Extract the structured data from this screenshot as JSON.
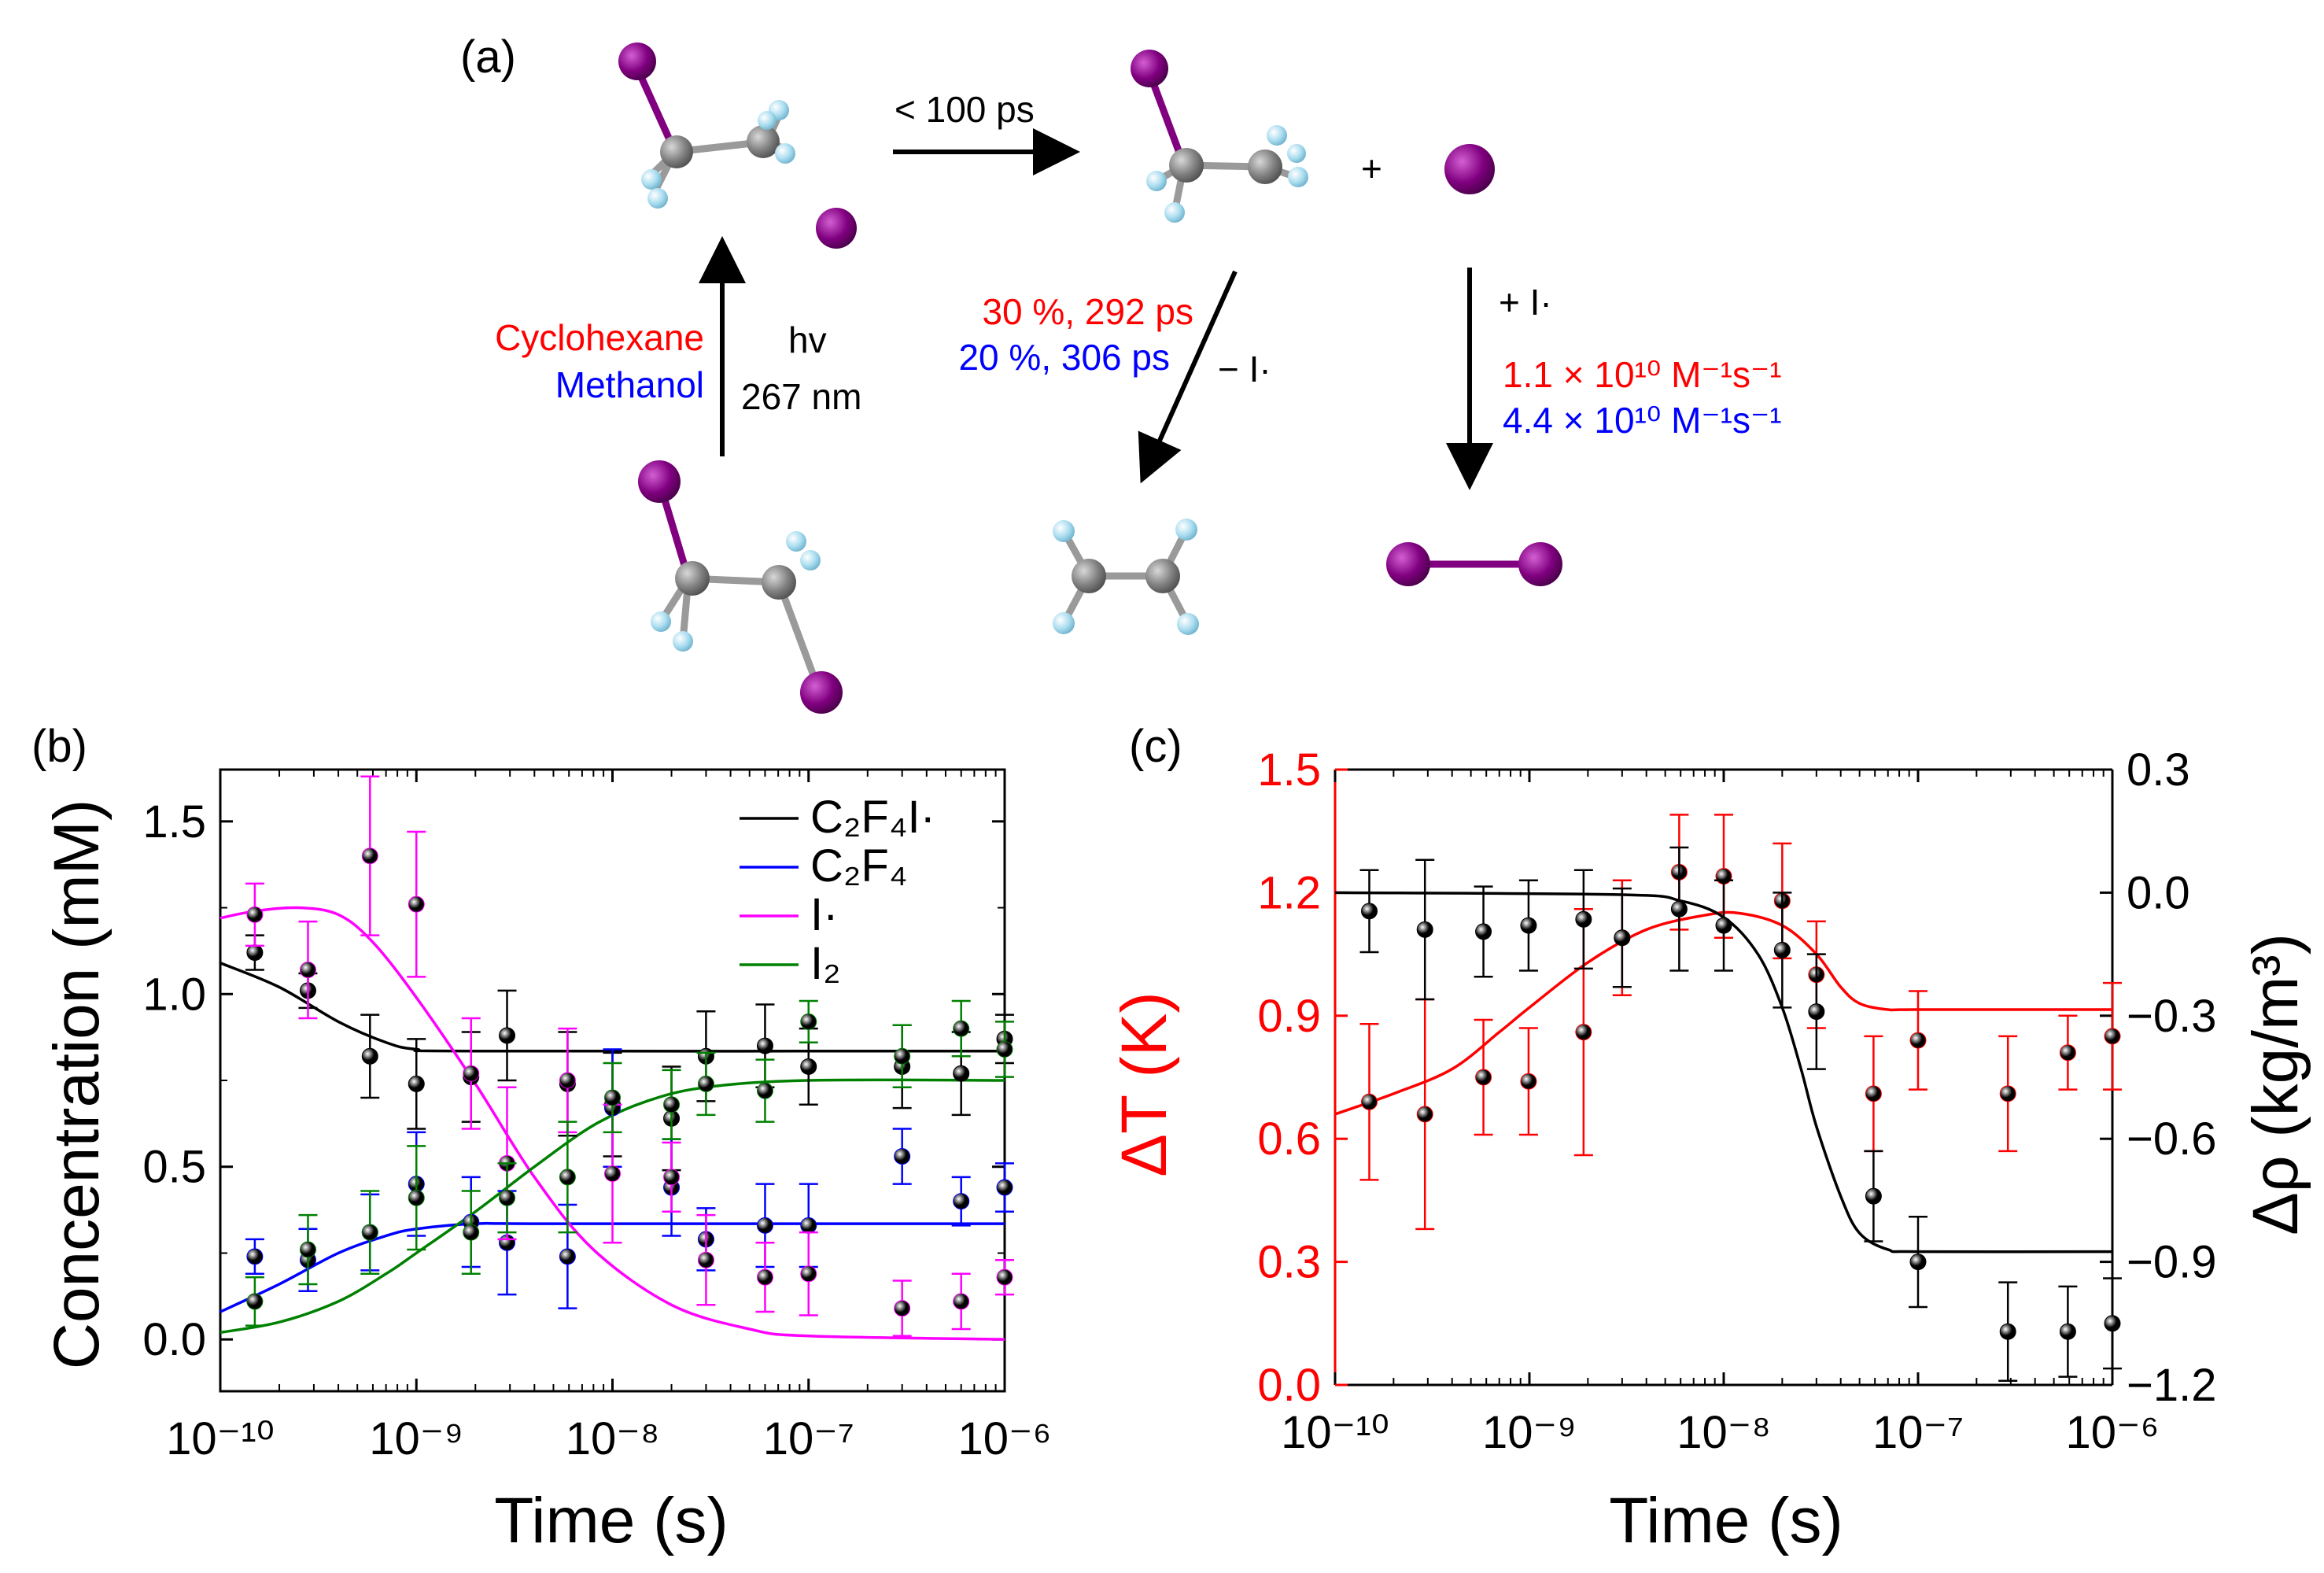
{
  "panel_a": {
    "label": "(a)",
    "arrow_top": "< 100 ps",
    "plus": "+",
    "solvent_1": "Cyclohexane",
    "solvent_2": "Methanol",
    "hv": "hv",
    "wavelength": "267 nm",
    "elim_red": "30 %, 292 ps",
    "elim_blue": "20 %, 306 ps",
    "minus_i": "− I·",
    "plus_i": "+ I·",
    "rate_red": "1.1 × 10¹⁰ M⁻¹s⁻¹",
    "rate_blue": "4.4 × 10¹⁰ M⁻¹s⁻¹",
    "colors": {
      "iodine": "#800080",
      "carbon": "#808080",
      "fluorine": "#a8dcef",
      "red": "#ff0000",
      "blue": "#0000ff"
    }
  },
  "chart_data": [
    {
      "label": "(b)",
      "type": "scatter",
      "xscale": "log",
      "xlim": [
        1e-10,
        1e-06
      ],
      "ylim": [
        -0.15,
        1.65
      ],
      "xlabel": "Time (s)",
      "ylabel": "Concentration (mM)",
      "xticks": [
        "10⁻¹⁰",
        "10⁻⁹",
        "10⁻⁸",
        "10⁻⁷",
        "10⁻⁶"
      ],
      "yticks": [
        "0.0",
        "0.5",
        "1.0",
        "1.5"
      ],
      "legend_position": "top-right",
      "x": [
        1.5e-10,
        2.8e-10,
        5.8e-10,
        1e-09,
        1.9e-09,
        2.9e-09,
        5.9e-09,
        1e-08,
        2e-08,
        3e-08,
        6e-08,
        1e-07,
        3e-07,
        6e-07,
        1e-06
      ],
      "series": [
        {
          "name": "C₂F₄I·",
          "color": "#000000",
          "values": [
            1.12,
            1.01,
            0.82,
            0.74,
            0.76,
            0.88,
            0.74,
            0.68,
            0.64,
            0.82,
            0.85,
            0.79,
            0.79,
            0.77,
            0.87
          ],
          "errors": [
            0.05,
            0.05,
            0.12,
            0.13,
            0.13,
            0.13,
            0.15,
            0.15,
            0.15,
            0.13,
            0.12,
            0.11,
            0.12,
            0.12,
            0.07
          ],
          "fit": [
            [
              1e-10,
              1.09
            ],
            [
              2e-10,
              1.02
            ],
            [
              4e-10,
              0.92
            ],
            [
              7e-10,
              0.86
            ],
            [
              1e-09,
              0.84
            ],
            [
              2e-09,
              0.835
            ],
            [
              1e-06,
              0.835
            ]
          ]
        },
        {
          "name": "C₂F₄",
          "color": "#0000ff",
          "values": [
            0.24,
            0.23,
            0.31,
            0.45,
            0.34,
            0.28,
            0.24,
            0.67,
            0.44,
            0.29,
            0.33,
            0.33,
            0.53,
            0.4,
            0.44
          ],
          "errors": [
            0.05,
            0.09,
            0.11,
            0.15,
            0.13,
            0.15,
            0.15,
            0.17,
            0.14,
            0.09,
            0.12,
            0.12,
            0.08,
            0.07,
            0.07
          ],
          "fit": [
            [
              1e-10,
              0.08
            ],
            [
              2e-10,
              0.16
            ],
            [
              4e-10,
              0.25
            ],
            [
              7e-10,
              0.3
            ],
            [
              1e-09,
              0.32
            ],
            [
              2e-09,
              0.335
            ],
            [
              5e-09,
              0.335
            ],
            [
              1e-06,
              0.335
            ]
          ]
        },
        {
          "name": "I·",
          "color": "#ff00ff",
          "values": [
            1.23,
            1.07,
            1.4,
            1.26,
            0.77,
            0.51,
            0.75,
            0.48,
            0.47,
            0.23,
            0.18,
            0.19,
            0.09,
            0.11,
            0.18
          ],
          "errors": [
            0.09,
            0.14,
            0.23,
            0.21,
            0.16,
            0.22,
            0.15,
            0.2,
            0.1,
            0.13,
            0.1,
            0.12,
            0.08,
            0.08,
            0.05
          ],
          "fit": [
            [
              1e-10,
              1.22
            ],
            [
              1.5e-10,
              1.24
            ],
            [
              2.5e-10,
              1.25
            ],
            [
              4e-10,
              1.23
            ],
            [
              6e-10,
              1.15
            ],
            [
              1e-09,
              0.99
            ],
            [
              2e-09,
              0.74
            ],
            [
              4e-09,
              0.47
            ],
            [
              8e-09,
              0.26
            ],
            [
              2e-08,
              0.1
            ],
            [
              5e-08,
              0.03
            ],
            [
              1e-07,
              0.01
            ],
            [
              1e-06,
              0.0
            ]
          ]
        },
        {
          "name": "I₂",
          "color": "#008000",
          "values": [
            0.11,
            0.26,
            0.31,
            0.41,
            0.31,
            0.41,
            0.47,
            0.7,
            0.68,
            0.74,
            0.72,
            0.92,
            0.82,
            0.9,
            0.84
          ],
          "errors": [
            0.07,
            0.1,
            0.12,
            0.15,
            0.12,
            0.1,
            0.16,
            0.1,
            0.1,
            0.09,
            0.09,
            0.06,
            0.09,
            0.08,
            0.08
          ],
          "fit": [
            [
              1e-10,
              0.02
            ],
            [
              2e-10,
              0.05
            ],
            [
              4e-10,
              0.11
            ],
            [
              7e-10,
              0.19
            ],
            [
              1e-09,
              0.25
            ],
            [
              2e-09,
              0.37
            ],
            [
              4e-09,
              0.5
            ],
            [
              8e-09,
              0.62
            ],
            [
              1.5e-08,
              0.69
            ],
            [
              3e-08,
              0.73
            ],
            [
              1e-07,
              0.75
            ],
            [
              1e-06,
              0.75
            ]
          ]
        }
      ]
    },
    {
      "label": "(c)",
      "type": "scatter",
      "xscale": "log",
      "xlim": [
        1e-10,
        1e-06
      ],
      "ylim_left": [
        0.0,
        1.5
      ],
      "ylim_right": [
        -1.2,
        0.3
      ],
      "xlabel": "Time (s)",
      "ylabel_left": "ΔT (K)",
      "ylabel_right": "Δρ (kg/m³)",
      "xticks": [
        "10⁻¹⁰",
        "10⁻⁹",
        "10⁻⁸",
        "10⁻⁷",
        "10⁻⁶"
      ],
      "yticks_left": [
        "0.0",
        "0.3",
        "0.6",
        "0.9",
        "1.2",
        "1.5"
      ],
      "yticks_right": [
        "−1.2",
        "−0.9",
        "−0.6",
        "−0.3",
        "0.0",
        "0.3"
      ],
      "x": [
        1.5e-10,
        2.9e-10,
        5.8e-10,
        9.9e-10,
        1.9e-09,
        3e-09,
        5.9e-09,
        1e-08,
        2e-08,
        3e-08,
        5.9e-08,
        1e-07,
        2.9e-07,
        5.9e-07,
        1e-06
      ],
      "series": [
        {
          "name": "ΔT",
          "axis": "left",
          "color": "#ff0000",
          "values": [
            0.69,
            0.66,
            0.75,
            0.74,
            0.86,
            1.09,
            1.25,
            1.24,
            1.18,
            1.0,
            0.71,
            0.84,
            0.71,
            0.81,
            0.85
          ],
          "errors": [
            0.19,
            0.28,
            0.14,
            0.13,
            0.3,
            0.14,
            0.14,
            0.15,
            0.14,
            0.13,
            0.14,
            0.12,
            0.14,
            0.09,
            0.13
          ],
          "fit": [
            [
              1e-10,
              0.66
            ],
            [
              2e-10,
              0.71
            ],
            [
              4e-10,
              0.77
            ],
            [
              7e-10,
              0.86
            ],
            [
              1e-09,
              0.92
            ],
            [
              2e-09,
              1.03
            ],
            [
              4e-09,
              1.11
            ],
            [
              8e-09,
              1.145
            ],
            [
              1.2e-08,
              1.15
            ],
            [
              2e-08,
              1.12
            ],
            [
              3e-08,
              1.05
            ],
            [
              4e-08,
              0.97
            ],
            [
              5e-08,
              0.93
            ],
            [
              7e-08,
              0.915
            ],
            [
              1e-07,
              0.915
            ],
            [
              1e-06,
              0.915
            ]
          ]
        },
        {
          "name": "Δρ",
          "axis": "right",
          "color": "#000000",
          "values": [
            -0.045,
            -0.09,
            -0.095,
            -0.08,
            -0.065,
            -0.11,
            -0.04,
            -0.08,
            -0.14,
            -0.29,
            -0.74,
            -0.9,
            -1.07,
            -1.07,
            -1.05
          ],
          "errors": [
            0.1,
            0.17,
            0.11,
            0.11,
            0.12,
            0.12,
            0.15,
            0.11,
            0.14,
            0.14,
            0.11,
            0.11,
            0.12,
            0.11,
            0.11
          ],
          "fit": [
            [
              1e-10,
              0.0
            ],
            [
              3e-09,
              -0.005
            ],
            [
              6e-09,
              -0.02
            ],
            [
              1e-08,
              -0.06
            ],
            [
              1.5e-08,
              -0.15
            ],
            [
              2e-08,
              -0.28
            ],
            [
              2.5e-08,
              -0.43
            ],
            [
              3e-08,
              -0.57
            ],
            [
              4e-08,
              -0.74
            ],
            [
              5e-08,
              -0.83
            ],
            [
              7e-08,
              -0.87
            ],
            [
              1e-07,
              -0.875
            ],
            [
              1e-06,
              -0.875
            ]
          ]
        }
      ]
    }
  ]
}
